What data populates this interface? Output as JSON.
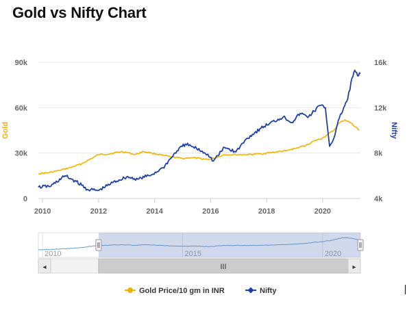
{
  "page": {
    "title": "Gold vs Nifty Chart"
  },
  "chart_data": {
    "type": "line",
    "title": "Gold vs Nifty Chart",
    "xlim": [
      2009.85,
      2021.35
    ],
    "x_ticks": [
      2010,
      2012,
      2014,
      2016,
      2018,
      2020
    ],
    "grid": "horizontal",
    "legend": "bottom-center",
    "axes": {
      "left": {
        "label": "Gold",
        "ylim": [
          0,
          90000
        ],
        "ticks": [
          0,
          30000,
          60000,
          90000
        ],
        "tick_labels": [
          "0",
          "30k",
          "60k",
          "90k"
        ],
        "color": "#f0b400"
      },
      "right": {
        "label": "Nifty",
        "ylim": [
          4000,
          16000
        ],
        "ticks": [
          4000,
          8000,
          12000,
          16000
        ],
        "tick_labels": [
          "4k",
          "8k",
          "12k",
          "16k"
        ],
        "color": "#1f3ea8"
      }
    },
    "series": [
      {
        "name": "Gold Price/10 gm in INR",
        "axis": "left",
        "color": "#f0b400",
        "x": [
          2009.85,
          2010.2,
          2010.6,
          2011.0,
          2011.4,
          2011.8,
          2012.0,
          2012.4,
          2012.8,
          2013.0,
          2013.3,
          2013.6,
          2013.9,
          2014.3,
          2014.6,
          2015.0,
          2015.3,
          2015.8,
          2016.0,
          2016.5,
          2016.9,
          2017.3,
          2017.8,
          2018.2,
          2018.7,
          2019.0,
          2019.4,
          2019.7,
          2020.0,
          2020.2,
          2020.4,
          2020.6,
          2020.8,
          2021.0,
          2021.2,
          2021.3
        ],
        "values": [
          16500,
          17000,
          18500,
          20500,
          23000,
          27000,
          29000,
          29500,
          31000,
          30500,
          29000,
          31000,
          30000,
          28500,
          27500,
          26500,
          27000,
          26000,
          26000,
          29000,
          29000,
          29000,
          29500,
          30500,
          31500,
          33000,
          35000,
          38000,
          40000,
          42500,
          45000,
          50000,
          52000,
          50000,
          47000,
          45000
        ]
      },
      {
        "name": "Nifty",
        "axis": "right",
        "color": "#1f3ea8",
        "x": [
          2009.85,
          2010.3,
          2010.8,
          2011.2,
          2011.6,
          2012.0,
          2012.5,
          2013.0,
          2013.4,
          2013.9,
          2014.3,
          2014.8,
          2015.1,
          2015.5,
          2015.9,
          2016.1,
          2016.5,
          2016.9,
          2017.3,
          2017.8,
          2018.1,
          2018.6,
          2018.9,
          2019.2,
          2019.5,
          2019.9,
          2020.1,
          2020.25,
          2020.4,
          2020.6,
          2020.9,
          2021.05,
          2021.15,
          2021.25,
          2021.35
        ],
        "values": [
          5000,
          5100,
          6000,
          5500,
          4800,
          4700,
          5400,
          5900,
          5700,
          6100,
          6700,
          8200,
          8800,
          8400,
          7900,
          7300,
          8500,
          8100,
          9300,
          10200,
          10600,
          11200,
          10700,
          11500,
          11200,
          12200,
          12000,
          8600,
          9300,
          11100,
          12800,
          14600,
          15300,
          14800,
          15000
        ]
      }
    ],
    "navigator": {
      "tick_labels": [
        "2010",
        "2015",
        "2020"
      ],
      "tick_values": [
        2010,
        2015,
        2020
      ],
      "selection": [
        2012.0,
        2021.35
      ],
      "scrollbar_grip": "III",
      "left_arrow": "◂",
      "right_arrow": "▸"
    }
  }
}
